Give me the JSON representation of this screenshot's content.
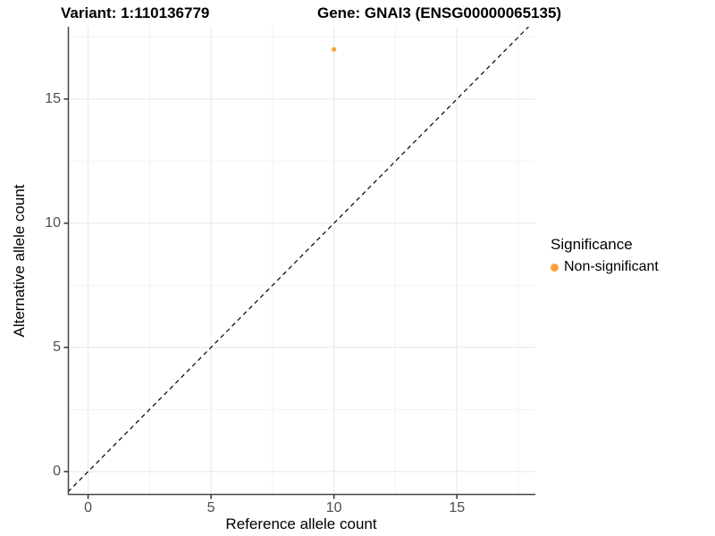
{
  "titles": {
    "variant": "Variant: 1:110136779",
    "gene": "Gene: GNAI3 (ENSG00000065135)"
  },
  "axes": {
    "x_label": "Reference allele count",
    "y_label": "Alternative allele count"
  },
  "legend": {
    "title": "Significance",
    "items": [
      {
        "label": "Non-significant",
        "color": "#F9A03C"
      }
    ]
  },
  "colors": {
    "background": "#ffffff",
    "axis_line": "#464646",
    "tick_mark": "#333333",
    "grid_major": "#e6e6e6",
    "grid_minor": "#f2f2f2",
    "tick_label": "#4d4d4d",
    "reference_line": "#000000",
    "point": "#F9A03C"
  },
  "chart_data": {
    "type": "scatter",
    "title": "Variant: 1:110136779   Gene: GNAI3 (ENSG00000065135)",
    "xlabel": "Reference allele count",
    "ylabel": "Alternative allele count",
    "xlim": [
      -0.82,
      18.19
    ],
    "ylim": [
      -0.94,
      17.91
    ],
    "x_ticks": [
      0,
      5,
      10,
      15
    ],
    "y_ticks": [
      0,
      5,
      10,
      15
    ],
    "x_minor_ticks": [
      2.5,
      7.5,
      12.5,
      17.5
    ],
    "y_minor_ticks": [
      2.5,
      7.5,
      12.5,
      17.5
    ],
    "grid": true,
    "legend_position": "right",
    "series": [
      {
        "name": "Non-significant",
        "color": "#F9A03C",
        "points": [
          {
            "x": 10,
            "y": 17
          }
        ]
      }
    ],
    "reference_line": {
      "slope": 1,
      "intercept": 0,
      "style": "dashed",
      "color": "#000000"
    }
  }
}
